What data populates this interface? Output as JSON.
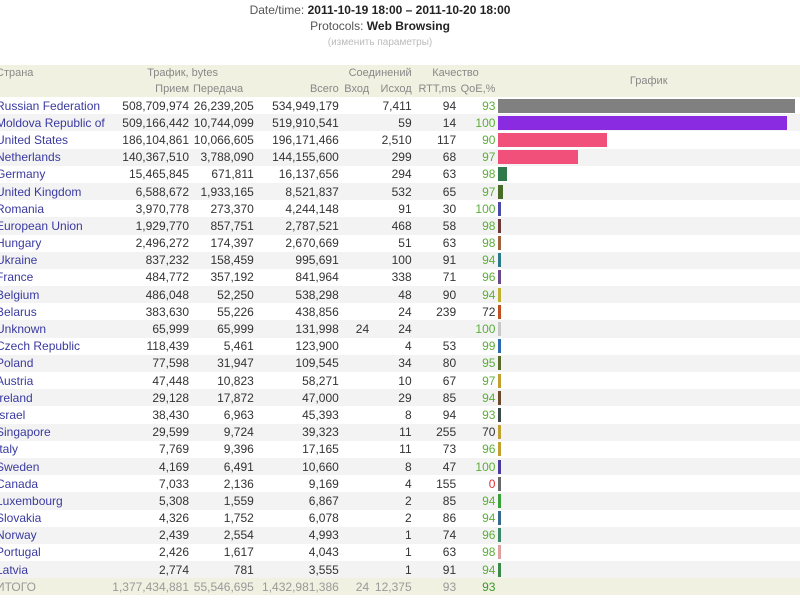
{
  "header": {
    "datetime_label": "Date/time:",
    "datetime_value": "2011-10-19 18:00 – 2011-10-20 18:00",
    "protocols_label": "Protocols:",
    "protocols_value": "Web Browsing",
    "change_params": "(изменить параметры)"
  },
  "columns": {
    "country": "Страна",
    "traffic": "Трафик, bytes",
    "received": "Прием",
    "sent": "Передача",
    "total": "Всего",
    "connections": "Соединений",
    "in": "Вход",
    "out": "Исход",
    "quality": "Качество",
    "rtt": "RTT,ms",
    "qoe": "QoE,%",
    "graph": "График"
  },
  "rows": [
    {
      "country": "Russian Federation",
      "received": "508,709,974",
      "sent": "26,239,205",
      "total": "534,949,179",
      "in": "",
      "out": "7,411",
      "rtt": "94",
      "qoe": "93",
      "bar_color": "#808080"
    },
    {
      "country": "Moldova Republic of",
      "received": "509,166,442",
      "sent": "10,744,099",
      "total": "519,910,541",
      "in": "",
      "out": "59",
      "rtt": "14",
      "qoe": "100",
      "bar_color": "#8a2be2"
    },
    {
      "country": "United States",
      "received": "186,104,861",
      "sent": "10,066,605",
      "total": "196,171,466",
      "in": "",
      "out": "2,510",
      "rtt": "117",
      "qoe": "90",
      "bar_color": "#f0507a"
    },
    {
      "country": "Netherlands",
      "received": "140,367,510",
      "sent": "3,788,090",
      "total": "144,155,600",
      "in": "",
      "out": "299",
      "rtt": "68",
      "qoe": "97",
      "bar_color": "#f0507a"
    },
    {
      "country": "Germany",
      "received": "15,465,845",
      "sent": "671,811",
      "total": "16,137,656",
      "in": "",
      "out": "294",
      "rtt": "63",
      "qoe": "98",
      "bar_color": "#2e7a4a"
    },
    {
      "country": "United Kingdom",
      "received": "6,588,672",
      "sent": "1,933,165",
      "total": "8,521,837",
      "in": "",
      "out": "532",
      "rtt": "65",
      "qoe": "97",
      "bar_color": "#4a6a2a"
    },
    {
      "country": "Romania",
      "received": "3,970,778",
      "sent": "273,370",
      "total": "4,244,148",
      "in": "",
      "out": "91",
      "rtt": "30",
      "qoe": "100",
      "bar_color": "#4a4aa8"
    },
    {
      "country": "European Union",
      "received": "1,929,770",
      "sent": "857,751",
      "total": "2,787,521",
      "in": "",
      "out": "468",
      "rtt": "58",
      "qoe": "98",
      "bar_color": "#6a3a3a"
    },
    {
      "country": "Hungary",
      "received": "2,496,272",
      "sent": "174,397",
      "total": "2,670,669",
      "in": "",
      "out": "51",
      "rtt": "63",
      "qoe": "98",
      "bar_color": "#a0603a"
    },
    {
      "country": "Ukraine",
      "received": "837,232",
      "sent": "158,459",
      "total": "995,691",
      "in": "",
      "out": "100",
      "rtt": "91",
      "qoe": "94",
      "bar_color": "#2a7a8a"
    },
    {
      "country": "France",
      "received": "484,772",
      "sent": "357,192",
      "total": "841,964",
      "in": "",
      "out": "338",
      "rtt": "71",
      "qoe": "96",
      "bar_color": "#6a4a8a"
    },
    {
      "country": "Belgium",
      "received": "486,048",
      "sent": "52,250",
      "total": "538,298",
      "in": "",
      "out": "48",
      "rtt": "90",
      "qoe": "94",
      "bar_color": "#c0b030"
    },
    {
      "country": "Belarus",
      "received": "383,630",
      "sent": "55,226",
      "total": "438,856",
      "in": "",
      "out": "24",
      "rtt": "239",
      "qoe": "72",
      "bar_color": "#c05020"
    },
    {
      "country": "Unknown",
      "received": "65,999",
      "sent": "65,999",
      "total": "131,998",
      "in": "24",
      "out": "24",
      "rtt": "",
      "qoe": "100",
      "bar_color": "#c8c8c8"
    },
    {
      "country": "Czech Republic",
      "received": "118,439",
      "sent": "5,461",
      "total": "123,900",
      "in": "",
      "out": "4",
      "rtt": "53",
      "qoe": "99",
      "bar_color": "#2a6ab0"
    },
    {
      "country": "Poland",
      "received": "77,598",
      "sent": "31,947",
      "total": "109,545",
      "in": "",
      "out": "34",
      "rtt": "80",
      "qoe": "95",
      "bar_color": "#5a6a2a"
    },
    {
      "country": "Austria",
      "received": "47,448",
      "sent": "10,823",
      "total": "58,271",
      "in": "",
      "out": "10",
      "rtt": "67",
      "qoe": "97",
      "bar_color": "#c0a030"
    },
    {
      "country": "Ireland",
      "received": "29,128",
      "sent": "17,872",
      "total": "47,000",
      "in": "",
      "out": "29",
      "rtt": "85",
      "qoe": "94",
      "bar_color": "#6a4a2a"
    },
    {
      "country": "Israel",
      "received": "38,430",
      "sent": "6,963",
      "total": "45,393",
      "in": "",
      "out": "8",
      "rtt": "94",
      "qoe": "93",
      "bar_color": "#3a4a4a"
    },
    {
      "country": "Singapore",
      "received": "29,599",
      "sent": "9,724",
      "total": "39,323",
      "in": "",
      "out": "11",
      "rtt": "255",
      "qoe": "70",
      "bar_color": "#c0a030"
    },
    {
      "country": "Italy",
      "received": "7,769",
      "sent": "9,396",
      "total": "17,165",
      "in": "",
      "out": "11",
      "rtt": "73",
      "qoe": "96",
      "bar_color": "#c0a030"
    },
    {
      "country": "Sweden",
      "received": "4,169",
      "sent": "6,491",
      "total": "10,660",
      "in": "",
      "out": "8",
      "rtt": "47",
      "qoe": "100",
      "bar_color": "#4a3a9a"
    },
    {
      "country": "Canada",
      "received": "7,033",
      "sent": "2,136",
      "total": "9,169",
      "in": "",
      "out": "4",
      "rtt": "155",
      "qoe": "0",
      "bar_color": "#6a6a6a"
    },
    {
      "country": "Luxembourg",
      "received": "5,308",
      "sent": "1,559",
      "total": "6,867",
      "in": "",
      "out": "2",
      "rtt": "85",
      "qoe": "94",
      "bar_color": "#3aa03a"
    },
    {
      "country": "Slovakia",
      "received": "4,326",
      "sent": "1,752",
      "total": "6,078",
      "in": "",
      "out": "2",
      "rtt": "86",
      "qoe": "94",
      "bar_color": "#3a6a8a"
    },
    {
      "country": "Norway",
      "received": "2,439",
      "sent": "2,554",
      "total": "4,993",
      "in": "",
      "out": "1",
      "rtt": "74",
      "qoe": "96",
      "bar_color": "#3a8a6a"
    },
    {
      "country": "Portugal",
      "received": "2,426",
      "sent": "1,617",
      "total": "4,043",
      "in": "",
      "out": "1",
      "rtt": "63",
      "qoe": "98",
      "bar_color": "#e0a0a0"
    },
    {
      "country": "Latvia",
      "received": "2,774",
      "sent": "781",
      "total": "3,555",
      "in": "",
      "out": "1",
      "rtt": "91",
      "qoe": "94",
      "bar_color": "#3a8a4a"
    }
  ],
  "totals": {
    "label": "ИТОГО",
    "received": "1,377,434,881",
    "sent": "55,546,695",
    "total": "1,432,981,386",
    "in": "24",
    "out": "12,375",
    "rtt": "93",
    "qoe": "93"
  }
}
